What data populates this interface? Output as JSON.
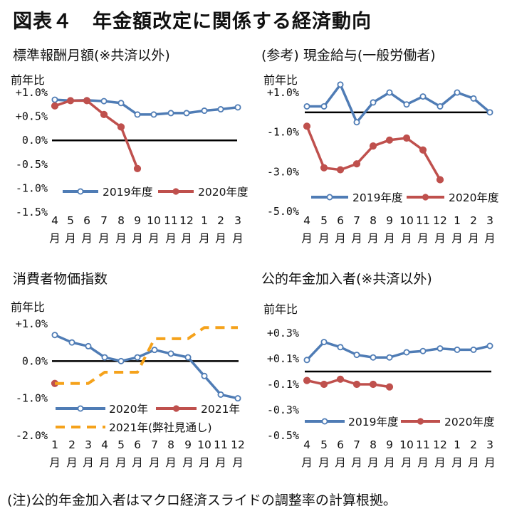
{
  "title": "図表４　年金額改定に関係する経済動向",
  "footnote": "(注)公的年金加入者はマクロ経済スライドの調整率の計算根拠。",
  "colors": {
    "blue": "#4f7cb5",
    "red": "#bf504d",
    "orange": "#f5a21b",
    "zero": "#000000"
  },
  "chart_data": [
    {
      "type": "line",
      "title": "標準報酬月額(※共済以外)",
      "ylabel": "前年比",
      "ylim": [
        -1.5,
        1.0
      ],
      "yticks": [
        1.0,
        0.5,
        0.0,
        -0.5,
        -1.0,
        -1.5
      ],
      "ytick_labels": [
        "+1.0%",
        "+0.5%",
        "0.0%",
        "-0.5%",
        "-1.0%",
        "-1.5%"
      ],
      "categories": [
        "4",
        "5",
        "6",
        "7",
        "8",
        "9",
        "10",
        "11",
        "12",
        "1",
        "2",
        "3"
      ],
      "cat_unit": "月",
      "series": [
        {
          "name": "2019年度",
          "color": "blue",
          "style": "solid",
          "marker": "open",
          "values": [
            0.85,
            0.83,
            0.84,
            0.82,
            0.78,
            0.54,
            0.54,
            0.57,
            0.57,
            0.62,
            0.65,
            0.69
          ]
        },
        {
          "name": "2020年度",
          "color": "red",
          "style": "solid",
          "marker": "filled",
          "values": [
            0.72,
            0.83,
            0.83,
            0.54,
            0.28,
            -0.59,
            null,
            null,
            null,
            null,
            null,
            null
          ]
        }
      ],
      "legend": "bottom"
    },
    {
      "type": "line",
      "title": "(参考) 現金給与(一般労働者)",
      "ylabel": "前年比",
      "ylim": [
        -5.0,
        1.0
      ],
      "yticks": [
        1.0,
        -1.0,
        -3.0,
        -5.0
      ],
      "ytick_labels": [
        "+1.0%",
        "-1.0%",
        "-3.0%",
        "-5.0%"
      ],
      "categories": [
        "4",
        "5",
        "6",
        "7",
        "8",
        "9",
        "10",
        "11",
        "12",
        "1",
        "2",
        "3"
      ],
      "cat_unit": "月",
      "series": [
        {
          "name": "2019年度",
          "color": "blue",
          "style": "solid",
          "marker": "open",
          "values": [
            0.3,
            0.3,
            1.4,
            -0.5,
            0.5,
            1.0,
            0.4,
            0.8,
            0.3,
            1.0,
            0.7,
            -0.0
          ]
        },
        {
          "name": "2020年度",
          "color": "red",
          "style": "solid",
          "marker": "filled",
          "values": [
            -0.7,
            -2.8,
            -2.9,
            -2.6,
            -1.7,
            -1.4,
            -1.3,
            -1.9,
            -3.4,
            null,
            null,
            null
          ]
        }
      ],
      "legend": "bottom"
    },
    {
      "type": "line",
      "title": "消費者物価指数",
      "ylabel": "前年比",
      "ylim": [
        -2.0,
        1.0
      ],
      "yticks": [
        1.0,
        0.0,
        -1.0,
        -2.0
      ],
      "ytick_labels": [
        "+1.0%",
        "0.0%",
        "-1.0%",
        "-2.0%"
      ],
      "categories": [
        "1",
        "2",
        "3",
        "4",
        "5",
        "6",
        "7",
        "8",
        "9",
        "10",
        "11",
        "12"
      ],
      "cat_unit": "月",
      "series": [
        {
          "name": "2020年",
          "color": "blue",
          "style": "solid",
          "marker": "open",
          "values": [
            0.7,
            0.5,
            0.4,
            0.1,
            0.0,
            0.1,
            0.3,
            0.2,
            0.1,
            -0.4,
            -0.9,
            -1.0
          ]
        },
        {
          "name": "2021年",
          "color": "red",
          "style": "solid",
          "marker": "filled",
          "values": [
            -0.6,
            null,
            null,
            null,
            null,
            null,
            null,
            null,
            null,
            null,
            null,
            null
          ]
        },
        {
          "name": "2021年(弊社見通し)",
          "color": "orange",
          "style": "dashed",
          "marker": "none",
          "values": [
            -0.6,
            -0.6,
            -0.6,
            -0.3,
            -0.3,
            -0.3,
            0.6,
            0.6,
            0.6,
            0.9,
            0.9,
            0.9
          ]
        }
      ],
      "legend": "bottom"
    },
    {
      "type": "line",
      "title": "公的年金加入者(※共済以外)",
      "ylabel": "前年比",
      "ylim": [
        -0.5,
        0.3
      ],
      "yticks": [
        0.3,
        0.1,
        -0.1,
        -0.3,
        -0.5
      ],
      "ytick_labels": [
        "+0.3%",
        "+0.1%",
        "-0.1%",
        "-0.3%",
        "-0.5%"
      ],
      "categories": [
        "4",
        "5",
        "6",
        "7",
        "8",
        "9",
        "10",
        "11",
        "12",
        "1",
        "2",
        "3"
      ],
      "cat_unit": "月",
      "series": [
        {
          "name": "2019年度",
          "color": "blue",
          "style": "solid",
          "marker": "open",
          "values": [
            0.09,
            0.23,
            0.19,
            0.13,
            0.11,
            0.11,
            0.15,
            0.16,
            0.18,
            0.17,
            0.17,
            0.2
          ]
        },
        {
          "name": "2020年度",
          "color": "red",
          "style": "solid",
          "marker": "filled",
          "values": [
            -0.07,
            -0.1,
            -0.06,
            -0.1,
            -0.1,
            -0.12,
            null,
            null,
            null,
            null,
            null,
            null
          ]
        }
      ],
      "legend": "bottom"
    }
  ]
}
